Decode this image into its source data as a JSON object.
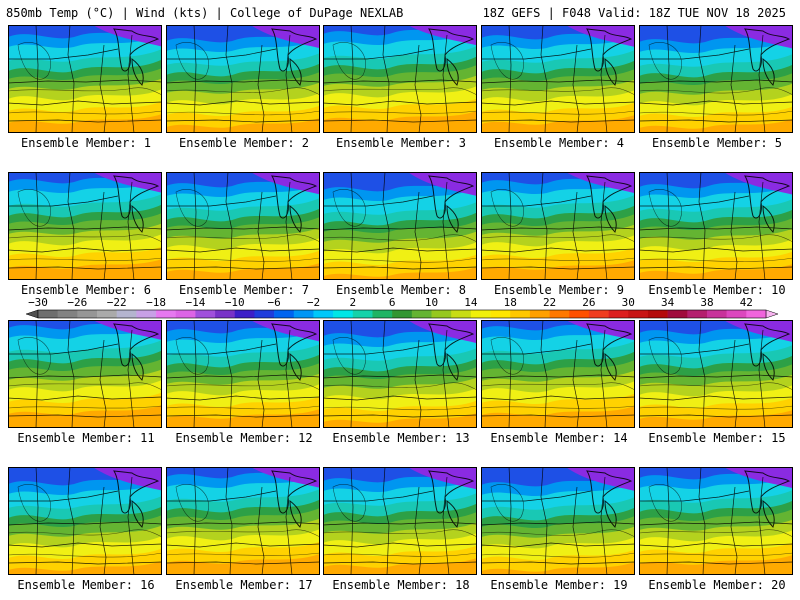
{
  "header": {
    "left": "850mb Temp (°C) | Wind (kts) | College of DuPage NEXLAB",
    "right": "18Z GEFS | F048 Valid: 18Z TUE NOV 18 2025"
  },
  "member_label_prefix": "Ensemble Member: ",
  "members": [
    1,
    2,
    3,
    4,
    5,
    6,
    7,
    8,
    9,
    10,
    11,
    12,
    13,
    14,
    15,
    16,
    17,
    18,
    19,
    20
  ],
  "colorbar": {
    "ticks": [
      "-30",
      "-26",
      "-22",
      "-18",
      "-14",
      "-10",
      "-6",
      "-2",
      "2",
      "6",
      "10",
      "14",
      "18",
      "22",
      "26",
      "30",
      "34",
      "38",
      "42"
    ],
    "units": "°C",
    "min": -30,
    "max": 44,
    "step": 2,
    "colors": [
      "#6e6e6e",
      "#828282",
      "#969696",
      "#aaaaaa",
      "#b4b4cf",
      "#c8a0e6",
      "#e678f0",
      "#dc64e6",
      "#a050dc",
      "#7832c8",
      "#3c1ec8",
      "#1e3cdc",
      "#0064f0",
      "#0096f5",
      "#00c8fa",
      "#00e6e6",
      "#14d2aa",
      "#1eb464",
      "#329632",
      "#64b432",
      "#96c81e",
      "#c8dc14",
      "#f0f00a",
      "#ffe600",
      "#ffc800",
      "#ffa000",
      "#ff7800",
      "#ff5000",
      "#f03c1e",
      "#dc1e1e",
      "#c81414",
      "#b40a0a",
      "#a00a3c",
      "#b41e6e",
      "#c8329b",
      "#dc46be",
      "#f064dc"
    ]
  },
  "map_palette": {
    "purple": "#8a2be2",
    "blue": "#1e50e6",
    "light_blue": "#0096f0",
    "cyan": "#14d2e6",
    "teal": "#19c8b4",
    "green": "#2da046",
    "light_green": "#64b432",
    "yellow_green": "#b4d21e",
    "yellow": "#f0f014",
    "gold": "#ffd200",
    "orange": "#ffaa00"
  }
}
